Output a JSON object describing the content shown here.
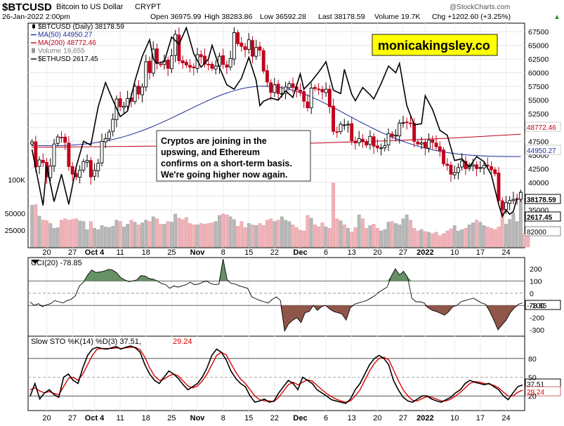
{
  "header": {
    "symbol": "$BTCUSD",
    "name": "Bitcoin to US Dollar",
    "exchange": "CRYPT",
    "date": "26-Jan-2022 2:00pm",
    "open": "Open 36975.99",
    "high": "High 38283.86",
    "low": "Low 36592.28",
    "last": "Last 38178.59",
    "volume": "Volume 19.7K",
    "change": "Chg +1202.60 (+3.25%)",
    "change_arrow": "▲",
    "watermark": "@StockCharts.com"
  },
  "legend": [
    {
      "text": "$BTCUSD (Daily) 38178.59",
      "color": "#000000",
      "mark": "candle"
    },
    {
      "text": "MA(50) 44950.27",
      "color": "#1c2f9e",
      "mark": "line"
    },
    {
      "text": "MA(200) 48772.46",
      "color": "#c0001c",
      "mark": "line"
    },
    {
      "text": "Volume 19,655",
      "color": "#7f7f7f",
      "mark": "bar"
    },
    {
      "text": "$ETHUSD 2617.45",
      "color": "#000000",
      "mark": "line"
    }
  ],
  "annotation": {
    "brand": "monicakingsley.co",
    "note_lines": [
      "Cryptos are joining in the",
      "upswing, and Ethereum",
      "confirms on a short-term basis.",
      "We're going higher now again."
    ]
  },
  "colors": {
    "up_candle": "#000000",
    "down_candle": "#c0001c",
    "ma50": "#1c2f9e",
    "ma200": "#c0001c",
    "eth": "#000000",
    "volume_up": "#b7b7b7",
    "volume_down": "#f0b3b8",
    "cci_pos": "#5e8c5e",
    "cci_neg": "#8a4d40",
    "brand_bg": "#ffff00",
    "k_line": "#000000",
    "d_line": "#e00000"
  },
  "chart_data": [
    {
      "type": "candlestick",
      "title": "$BTCUSD (Daily) 38178.59",
      "x_tick_labels": [
        "20",
        "27",
        "Oct 4",
        "11",
        "18",
        "25",
        "Nov",
        "8",
        "15",
        "22",
        "Dec",
        "6",
        "13",
        "20",
        "27",
        "2022",
        "10",
        "17",
        "24"
      ],
      "y_tick_labels": [
        "67500",
        "65000",
        "62500",
        "60000",
        "57500",
        "55000",
        "52500",
        "50000",
        "47500",
        "45000",
        "42500",
        "40000",
        "37500",
        "35000"
      ],
      "ylim": [
        33000,
        69000
      ],
      "closes": [
        47400,
        42800,
        44100,
        43600,
        41000,
        43000,
        47000,
        48300,
        48200,
        47300,
        42900,
        41500,
        41000,
        42200,
        43800,
        44000,
        41000,
        42200,
        43500,
        47500,
        48000,
        49200,
        51500,
        55200,
        53800,
        53900,
        55300,
        54800,
        57500,
        56100,
        57400,
        62000,
        60000,
        64300,
        61700,
        61500,
        62200,
        60800,
        63100,
        67000,
        62200,
        61800,
        61400,
        61000,
        60900,
        63300,
        62900,
        61600,
        61500,
        60800,
        61200,
        63000,
        61500,
        61000,
        62600,
        67300,
        65300,
        64800,
        64200,
        66000,
        63000,
        64600,
        64100,
        60300,
        58300,
        56400,
        57800,
        56200,
        56200,
        57400,
        58000,
        57300,
        56900,
        56500,
        54800,
        53600,
        57200,
        57100,
        56900,
        56500,
        57000,
        53800,
        49300,
        49200,
        50600,
        50500,
        50600,
        47600,
        47200,
        48000,
        47400,
        46800,
        48400,
        46600,
        46300,
        46300,
        46700,
        48900,
        48400,
        48600,
        50800,
        50900,
        50900,
        50700,
        47500,
        47000,
        47200,
        46300,
        47700,
        47300,
        46500,
        45800,
        43400,
        43100,
        41500,
        41800,
        42700,
        43900,
        42500,
        43100,
        43200,
        42500,
        42700,
        43100,
        43000,
        42300,
        41600,
        36700,
        35000,
        36300,
        36700,
        36900,
        37000,
        38178
      ],
      "volume_labels": [
        "100K",
        "50000",
        "25000"
      ],
      "volumes": [
        62000,
        63000,
        46000,
        40000,
        39000,
        35000,
        28000,
        29000,
        40000,
        42000,
        40000,
        41000,
        42000,
        39000,
        38000,
        26000,
        38000,
        28000,
        26000,
        32000,
        30000,
        29000,
        31000,
        40000,
        38000,
        30000,
        34000,
        40000,
        37000,
        33000,
        36000,
        40000,
        38000,
        45000,
        42000,
        34000,
        34000,
        38000,
        37000,
        49000,
        43000,
        41000,
        44000,
        35000,
        33000,
        33000,
        35000,
        34000,
        35000,
        36000,
        38000,
        47000,
        49000,
        48000,
        45000,
        41000,
        31000,
        38000,
        29000,
        35000,
        33000,
        32000,
        35000,
        32000,
        40000,
        42000,
        38000,
        40000,
        45000,
        40000,
        38000,
        33000,
        29000,
        25000,
        24000,
        47000,
        43000,
        33000,
        30000,
        36000,
        30000,
        28000,
        95000,
        42000,
        39000,
        33000,
        28000,
        22000,
        29000,
        48000,
        42000,
        28000,
        32000,
        34000,
        28000,
        24000,
        26000,
        37000,
        38000,
        35000,
        33000,
        42000,
        48000,
        40000,
        28000,
        24000,
        26000,
        23000,
        22000,
        20000,
        22000,
        17000,
        20000,
        24000,
        27000,
        32000,
        24000,
        26000,
        28000,
        33000,
        36000,
        40000,
        37000,
        32000,
        30000,
        28000,
        26000,
        30000,
        56000,
        34000,
        41000,
        51000,
        38000,
        82000,
        20000,
        19655
      ],
      "ma50_end": 44950.27,
      "ma200_end": 48772.46,
      "eth_last": "2617.45",
      "eth_path": [
        [
          0,
          46000
        ],
        [
          3,
          35800
        ],
        [
          4,
          43000
        ],
        [
          6,
          36500
        ],
        [
          8,
          41500
        ],
        [
          10,
          36000
        ],
        [
          12,
          42800
        ],
        [
          14,
          47500
        ],
        [
          16,
          46800
        ],
        [
          18,
          53800
        ],
        [
          20,
          58200
        ],
        [
          22,
          55000
        ],
        [
          24,
          52000
        ],
        [
          26,
          53000
        ],
        [
          28,
          58500
        ],
        [
          30,
          63000
        ],
        [
          32,
          66000
        ],
        [
          33,
          62500
        ],
        [
          34,
          61700
        ],
        [
          36,
          62000
        ],
        [
          38,
          66500
        ],
        [
          40,
          65200
        ],
        [
          42,
          68200
        ],
        [
          44,
          63500
        ],
        [
          46,
          61000
        ],
        [
          48,
          62500
        ],
        [
          49,
          65000
        ],
        [
          51,
          61000
        ],
        [
          53,
          57800
        ],
        [
          55,
          57000
        ],
        [
          57,
          59000
        ],
        [
          59,
          62800
        ],
        [
          61,
          58600
        ],
        [
          62,
          54000
        ],
        [
          63,
          54800
        ],
        [
          65,
          55400
        ],
        [
          67,
          55000
        ],
        [
          69,
          56700
        ],
        [
          71,
          55500
        ],
        [
          73,
          59800
        ],
        [
          74,
          57000
        ],
        [
          76,
          58400
        ],
        [
          78,
          60100
        ],
        [
          80,
          62000
        ],
        [
          82,
          56800
        ],
        [
          84,
          56200
        ],
        [
          85,
          60600
        ],
        [
          87,
          56100
        ],
        [
          88,
          54900
        ],
        [
          90,
          57300
        ],
        [
          92,
          56000
        ],
        [
          93,
          55200
        ],
        [
          95,
          58000
        ],
        [
          97,
          61200
        ],
        [
          99,
          60000
        ],
        [
          100,
          61700
        ],
        [
          101,
          57800
        ],
        [
          102,
          54000
        ],
        [
          104,
          50500
        ],
        [
          106,
          50700
        ],
        [
          107,
          55800
        ],
        [
          109,
          53300
        ],
        [
          111,
          49500
        ],
        [
          113,
          48600
        ],
        [
          115,
          44000
        ],
        [
          117,
          44300
        ],
        [
          119,
          42800
        ],
        [
          121,
          44700
        ],
        [
          123,
          43800
        ],
        [
          125,
          41400
        ],
        [
          127,
          36000
        ],
        [
          128,
          33800
        ],
        [
          129,
          35000
        ],
        [
          130,
          34200
        ],
        [
          131,
          34700
        ],
        [
          132,
          37200
        ]
      ]
    },
    {
      "type": "line",
      "title": "CCI(20) -78.85",
      "series_name": "CCI(20)",
      "last_value": "-78.85",
      "y_tick_labels": [
        "200",
        "100",
        "0",
        "-100",
        "-200",
        "-300"
      ],
      "ylim": [
        -340,
        300
      ],
      "values": [
        -72,
        -100,
        -85,
        -110,
        -95,
        -85,
        -60,
        -70,
        -80,
        -60,
        -50,
        -20,
        60,
        90,
        150,
        190,
        170,
        175,
        180,
        195,
        190,
        170,
        130,
        110,
        95,
        100,
        110,
        145,
        140,
        120,
        115,
        100,
        80,
        70,
        40,
        60,
        50,
        60,
        70,
        90,
        70,
        75,
        90,
        100,
        80,
        70,
        75,
        280,
        110,
        80,
        75,
        60,
        50,
        40,
        -30,
        -45,
        -60,
        -70,
        -80,
        -50,
        -30,
        -60,
        -310,
        -250,
        -220,
        -200,
        -240,
        -160,
        -150,
        -100,
        -140,
        -110,
        -100,
        -130,
        -150,
        -160,
        -170,
        -220,
        -120,
        -90,
        -80,
        -70,
        -60,
        -40,
        -20,
        10,
        30,
        50,
        140,
        200,
        150,
        180,
        130,
        -40,
        -70,
        -70,
        -80,
        -120,
        -140,
        -150,
        -165,
        -180,
        -150,
        -110,
        -100,
        -70,
        -60,
        -50,
        -40,
        -60,
        -80,
        -90,
        -150,
        -220,
        -300,
        -260,
        -220,
        -160,
        -120,
        -90,
        -78.85
      ]
    },
    {
      "type": "line",
      "title": "Slow STO %K(14) %D(3) 37.51, 29.24",
      "series": [
        {
          "name": "%K(14)",
          "last": "37.51",
          "values": [
            20,
            40,
            15,
            25,
            30,
            22,
            18,
            50,
            55,
            45,
            40,
            65,
            85,
            95,
            98,
            96,
            95,
            97,
            99,
            95,
            98,
            100,
            97,
            90,
            70,
            55,
            45,
            40,
            50,
            60,
            55,
            48,
            38,
            30,
            35,
            40,
            50,
            65,
            85,
            95,
            90,
            78,
            60,
            48,
            40,
            35,
            20,
            10,
            12,
            15,
            10,
            12,
            25,
            35,
            45,
            40,
            30,
            50,
            45,
            40,
            30,
            25,
            20,
            14,
            12,
            10,
            8,
            15,
            30,
            40,
            55,
            70,
            80,
            85,
            80,
            70,
            45,
            30,
            18,
            12,
            10,
            15,
            20,
            20,
            15,
            12,
            10,
            14,
            18,
            25,
            30,
            40,
            45,
            42,
            40,
            38,
            40,
            35,
            30,
            20,
            14,
            25,
            35,
            37.51
          ]
        },
        {
          "name": "%D(3)",
          "last": "29.24",
          "values": [
            30,
            33,
            28,
            25,
            27,
            24,
            22,
            35,
            48,
            50,
            45,
            55,
            70,
            85,
            95,
            96,
            96,
            96,
            97,
            96,
            97,
            98,
            98,
            94,
            82,
            65,
            52,
            45,
            47,
            52,
            55,
            52,
            44,
            36,
            33,
            36,
            44,
            55,
            70,
            85,
            90,
            86,
            72,
            58,
            47,
            40,
            30,
            20,
            14,
            12,
            12,
            11,
            18,
            28,
            38,
            42,
            38,
            42,
            46,
            44,
            37,
            30,
            24,
            19,
            15,
            12,
            10,
            12,
            20,
            30,
            45,
            60,
            72,
            80,
            82,
            78,
            62,
            45,
            30,
            20,
            13,
            12,
            16,
            19,
            18,
            15,
            12,
            12,
            15,
            20,
            26,
            33,
            40,
            43,
            42,
            40,
            39,
            37,
            33,
            26,
            20,
            20,
            26,
            29.24
          ]
        }
      ],
      "y_tick_labels": [
        "80",
        "50",
        "20"
      ],
      "ylim": [
        -5,
        108
      ]
    }
  ]
}
